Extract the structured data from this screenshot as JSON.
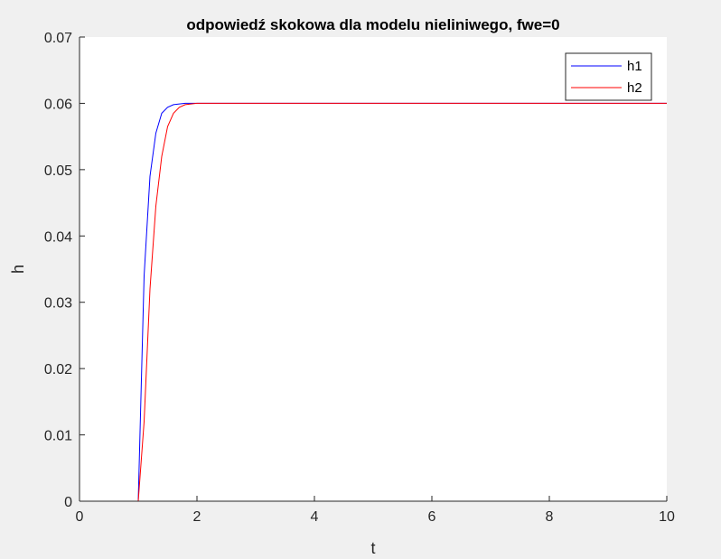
{
  "chart_data": {
    "type": "line",
    "title": "odpowiedź skokowa dla modelu nieliniwego, fwe=0",
    "xlabel": "t",
    "ylabel": "h",
    "xlim": [
      0,
      10
    ],
    "ylim": [
      0,
      0.07
    ],
    "xticks": [
      0,
      2,
      4,
      6,
      8,
      10
    ],
    "xtick_labels": [
      "0",
      "2",
      "4",
      "6",
      "8",
      "10"
    ],
    "yticks": [
      0,
      0.01,
      0.02,
      0.03,
      0.04,
      0.05,
      0.06,
      0.07
    ],
    "ytick_labels": [
      "0",
      "0.01",
      "0.02",
      "0.03",
      "0.04",
      "0.05",
      "0.06",
      "0.07"
    ],
    "grid": false,
    "legend": "top-right",
    "series": [
      {
        "name": "h1",
        "color": "#0000ff",
        "x": [
          0,
          1.0,
          1.1,
          1.2,
          1.3,
          1.4,
          1.5,
          1.6,
          1.7,
          1.8,
          2.0,
          2.5,
          10
        ],
        "y": [
          0,
          0,
          0.034,
          0.049,
          0.0555,
          0.0585,
          0.0594,
          0.0598,
          0.0599,
          0.06,
          0.06,
          0.06,
          0.06
        ]
      },
      {
        "name": "h2",
        "color": "#ff0000",
        "x": [
          0,
          1.0,
          1.1,
          1.2,
          1.3,
          1.4,
          1.5,
          1.6,
          1.7,
          1.8,
          1.9,
          2.0,
          2.2,
          2.5,
          10
        ],
        "y": [
          0,
          0,
          0.012,
          0.032,
          0.0445,
          0.052,
          0.0565,
          0.0585,
          0.0594,
          0.0598,
          0.0599,
          0.06,
          0.06,
          0.06,
          0.06
        ]
      }
    ]
  }
}
